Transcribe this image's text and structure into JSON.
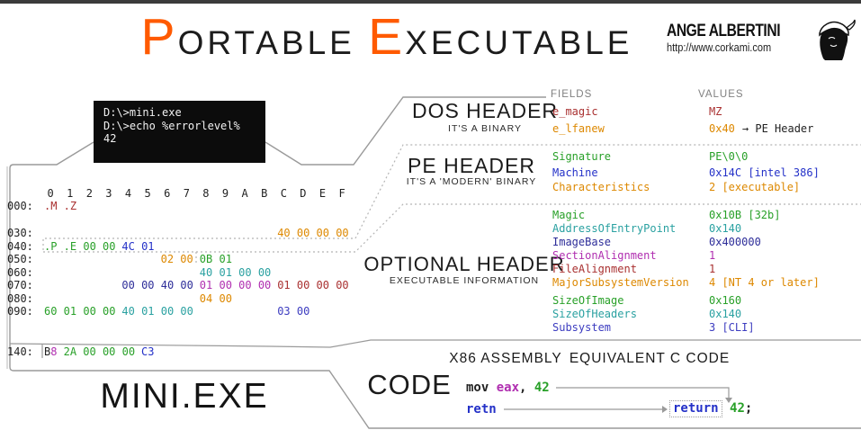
{
  "title": {
    "big1": "P",
    "small1": "ORTABLE",
    "big2": "E",
    "small2": "XECUTABLE"
  },
  "brand": {
    "author": "ANGE ALBERTINI",
    "url": "http://www.corkami.com",
    "icon": "portrait-head-icon"
  },
  "terminal": {
    "lines": [
      "D:\\>mini.exe",
      "",
      "D:\\>echo %errorlevel%",
      "42"
    ]
  },
  "column_labels": {
    "fields": "FIELDS",
    "values": "VALUES"
  },
  "hexdump": {
    "col_headers": [
      "0",
      "1",
      "2",
      "3",
      "4",
      "5",
      "6",
      "7",
      "8",
      "9",
      "A",
      "B",
      "C",
      "D",
      "E",
      "F"
    ],
    "rows": [
      {
        "offset": "000:",
        "groups": [
          {
            "t": ".M .Z",
            "col": 0,
            "c": "darkred"
          }
        ]
      },
      {
        "offset": "030:",
        "groups": [
          {
            "t": "40 00 00 00",
            "col": 12,
            "c": "orange"
          }
        ]
      },
      {
        "offset": "040:",
        "groups": [
          {
            "t": ".P .E 00 00",
            "col": 0,
            "c": "green"
          },
          {
            "t": "4C 01",
            "col": 4,
            "c": "blue"
          }
        ]
      },
      {
        "offset": "050:",
        "groups": [
          {
            "t": "02 00",
            "col": 6,
            "c": "orange"
          },
          {
            "t": "0B 01",
            "col": 8,
            "c": "green"
          }
        ]
      },
      {
        "offset": "060:",
        "groups": [
          {
            "t": "40 01 00 00",
            "col": 8,
            "c": "teal"
          }
        ]
      },
      {
        "offset": "070:",
        "groups": [
          {
            "t": "00 00 40 00",
            "col": 4,
            "c": "navy"
          },
          {
            "t": "01 00 00 00",
            "col": 8,
            "c": "magenta"
          },
          {
            "t": "01 00 00 00",
            "col": 12,
            "c": "darkred"
          }
        ]
      },
      {
        "offset": "080:",
        "groups": [
          {
            "t": "04 00",
            "col": 8,
            "c": "orange"
          }
        ]
      },
      {
        "offset": "090:",
        "groups": [
          {
            "t": "60 01 00 00",
            "col": 0,
            "c": "green"
          },
          {
            "t": "40 01 00 00",
            "col": 4,
            "c": "teal"
          },
          {
            "t": "03 00",
            "col": 12,
            "c": "blue2"
          }
        ]
      },
      {
        "offset": "140:",
        "groups": [
          {
            "t": "B",
            "col": 0,
            "c": "ink"
          },
          {
            "t": "8",
            "col": 0,
            "dx": 7.2,
            "c": "magenta"
          },
          {
            "t": "2A 00 00 00",
            "col": 1,
            "c": "green"
          },
          {
            "t": "C3",
            "col": 5,
            "c": "blue"
          }
        ]
      }
    ]
  },
  "sections": [
    {
      "name": "DOS HEADER",
      "subtitle": "IT'S A BINARY",
      "rows": [
        {
          "field": "e_magic",
          "c": "darkred",
          "value": "MZ"
        },
        {
          "field": "e_lfanew",
          "c": "orange",
          "value": "0x40",
          "extra": "→ PE Header"
        }
      ]
    },
    {
      "name": "PE HEADER",
      "subtitle": "IT'S A 'MODERN' BINARY",
      "rows": [
        {
          "field": "Signature",
          "c": "green",
          "value": "PE\\0\\0"
        },
        {
          "field": "Machine",
          "c": "blue",
          "value": "0x14C [intel 386]"
        },
        {
          "field": "Characteristics",
          "c": "orange",
          "value": "2 [executable]"
        }
      ]
    },
    {
      "name": "OPTIONAL HEADER",
      "subtitle": "EXECUTABLE INFORMATION",
      "rows": [
        {
          "field": "Magic",
          "c": "green",
          "value": "0x10B [32b]"
        },
        {
          "field": "AddressOfEntryPoint",
          "c": "teal",
          "value": "0x140"
        },
        {
          "field": "ImageBase",
          "c": "navy",
          "value": "0x400000"
        },
        {
          "field": "SectionAlignment",
          "c": "magenta",
          "value": "1"
        },
        {
          "field": "FileAlignment",
          "c": "darkred",
          "value": "1"
        },
        {
          "field": "MajorSubsystemVersion",
          "c": "orange",
          "value": "4 [NT 4 or later]"
        },
        {
          "field": "SizeOfImage",
          "c": "green",
          "value": "0x160"
        },
        {
          "field": "SizeOfHeaders",
          "c": "teal",
          "value": "0x140"
        },
        {
          "field": "Subsystem",
          "c": "blue2",
          "value": "3 [CLI]"
        }
      ]
    },
    {
      "name": "CODE",
      "subtitle": ""
    }
  ],
  "code": {
    "asm_header": "X86 ASSEMBLY",
    "c_header": "EQUIVALENT C CODE",
    "asm_lines": [
      [
        {
          "t": "mov ",
          "c": "ink"
        },
        {
          "t": "eax",
          "c": "magenta"
        },
        {
          "t": ", ",
          "c": "ink"
        },
        {
          "t": "42",
          "c": "green"
        }
      ],
      [
        {
          "t": "retn",
          "c": "blue"
        }
      ]
    ],
    "c_line": [
      {
        "t": "return",
        "c": "blue",
        "box": true
      },
      {
        "t": " ",
        "c": "ink"
      },
      {
        "t": "42",
        "c": "green"
      },
      {
        "t": ";",
        "c": "ink"
      }
    ]
  },
  "file_label": "MINI.EXE",
  "colors": {
    "ink": "#222222",
    "darkred": "#a93030",
    "orange": "#dd8800",
    "green": "#28a028",
    "blue": "#2431c8",
    "teal": "#2aa1a1",
    "navy": "#2d2d99",
    "magenta": "#b02eb0",
    "blue2": "#3c3cc0",
    "title_accent": "#ff5a00",
    "line": "#9a9a9a",
    "dotted": "#b5b5b5"
  }
}
